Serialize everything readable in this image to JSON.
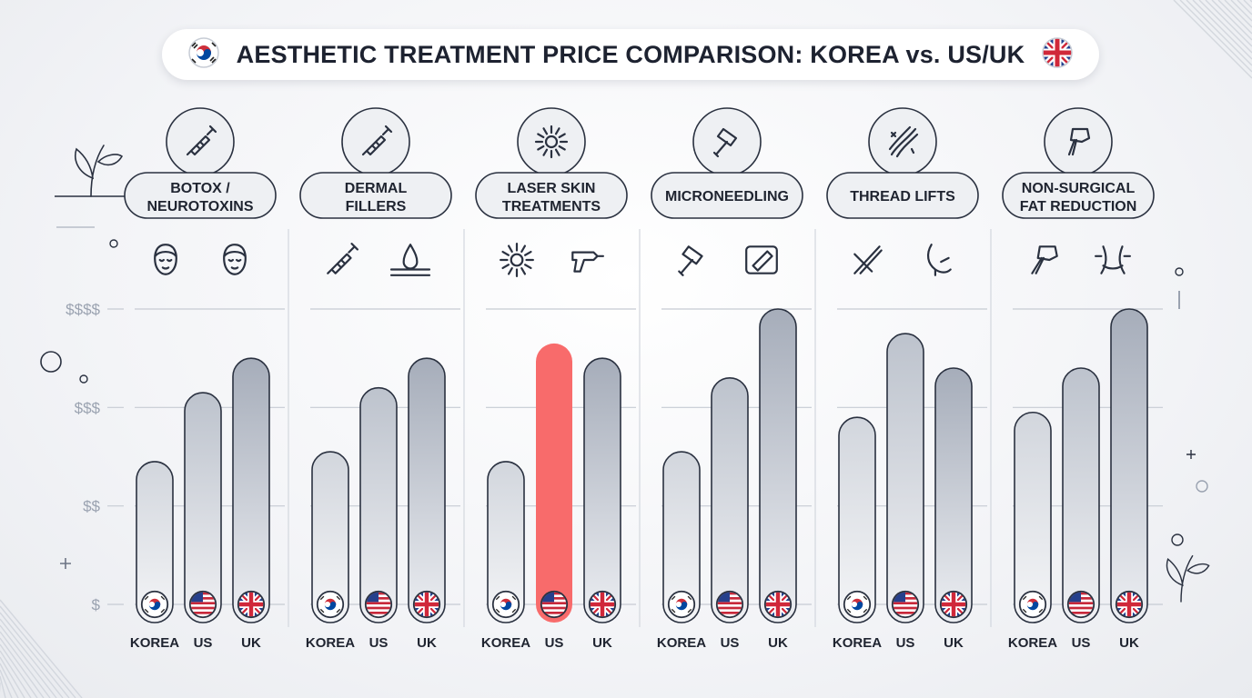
{
  "chart_data": {
    "type": "bar",
    "title": "AESTHETIC TREATMENT PRICE COMPARISON: KOREA vs. US/UK",
    "y_tick_labels": [
      "$$$$",
      "$$$",
      "$$",
      "$"
    ],
    "y_ticks": [
      4,
      3,
      2,
      1
    ],
    "ylim": [
      1,
      4
    ],
    "series_names": [
      "KOREA",
      "US",
      "UK"
    ],
    "flag_icons": [
      "korea-flag-icon",
      "us-flag-icon",
      "uk-flag-icon"
    ],
    "categories": [
      {
        "label": [
          "BOTOX /",
          "NEUROTOXINS"
        ],
        "icon": "syringe-icon",
        "sub_icons": [
          "face-icon",
          "face-icon"
        ],
        "values": [
          2.45,
          3.15,
          3.5
        ]
      },
      {
        "label": [
          "DERMAL",
          "FILLERS"
        ],
        "icon": "syringe-icon",
        "sub_icons": [
          "syringe-icon",
          "skin-droplet-icon"
        ],
        "values": [
          2.55,
          3.2,
          3.5
        ]
      },
      {
        "label": [
          "LASER SKIN",
          "TREATMENTS"
        ],
        "icon": "sunburst-icon",
        "sub_icons": [
          "sunburst-icon",
          "laser-device-icon"
        ],
        "values": [
          2.45,
          3.65,
          3.5
        ]
      },
      {
        "label": [
          "MICRONEEDLING"
        ],
        "icon": "derma-roller-icon",
        "sub_icons": [
          "derma-roller-icon",
          "needle-patch-icon"
        ],
        "values": [
          2.55,
          3.3,
          4.0
        ]
      },
      {
        "label": [
          "THREAD LIFTS"
        ],
        "icon": "thread-lift-icon",
        "sub_icons": [
          "tweezers-icon",
          "jawline-icon"
        ],
        "values": [
          2.9,
          3.75,
          3.4
        ]
      },
      {
        "label": [
          "NON-SURGICAL",
          "FAT REDUCTION"
        ],
        "icon": "body-contour-device-icon",
        "sub_icons": [
          "contour-device-icon",
          "waist-icon"
        ],
        "values": [
          2.95,
          3.4,
          4.0
        ]
      }
    ],
    "highlighted": {
      "category": 2,
      "series": 1
    },
    "grid": true,
    "legend": "flag icons at bar bases with labels below"
  },
  "colors": {
    "bar_base": "#eceef2",
    "bar_fill_top": "#a9b0bd",
    "bar_stroke": "#2a3140",
    "highlight": "#f86b6b",
    "tick_text": "#9aa2b0",
    "grid": "#c6cbd3"
  },
  "decorations": [
    "plant-icon",
    "plant-icon",
    "circle-icon",
    "circle-icon",
    "circle-icon",
    "circle-icon",
    "plus-icon",
    "hatching"
  ],
  "title_flags": [
    "korea-flag-icon",
    "uk-flag-icon"
  ]
}
